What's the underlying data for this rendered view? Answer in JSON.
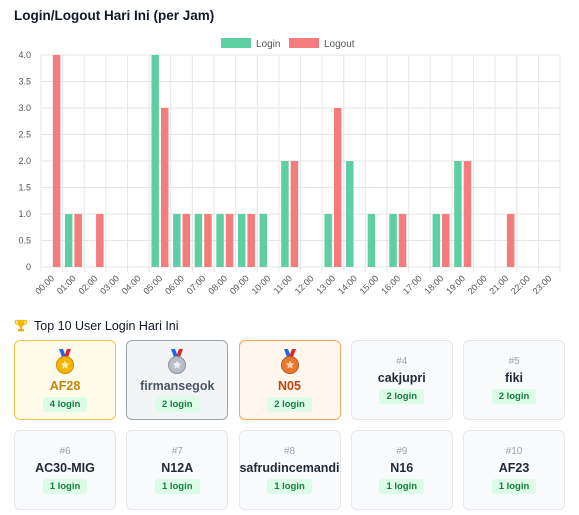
{
  "title": "Login/Logout Hari Ini (per Jam)",
  "chart_data": {
    "type": "bar",
    "categories": [
      "00:00",
      "01:00",
      "02:00",
      "03:00",
      "04:00",
      "05:00",
      "06:00",
      "07:00",
      "08:00",
      "09:00",
      "10:00",
      "11:00",
      "12:00",
      "13:00",
      "14:00",
      "15:00",
      "16:00",
      "17:00",
      "18:00",
      "19:00",
      "20:00",
      "21:00",
      "22:00",
      "23:00"
    ],
    "series": [
      {
        "name": "Login",
        "color": "#5ecfa3",
        "values": [
          0,
          1,
          0,
          0,
          0,
          4,
          1,
          1,
          1,
          1,
          1,
          2,
          0,
          1,
          2,
          1,
          1,
          0,
          1,
          2,
          0,
          0,
          0,
          0
        ]
      },
      {
        "name": "Logout",
        "color": "#f47c7c",
        "values": [
          4,
          1,
          1,
          0,
          0,
          3,
          1,
          1,
          1,
          1,
          0,
          2,
          0,
          3,
          0,
          0,
          1,
          0,
          1,
          2,
          0,
          1,
          0,
          0
        ]
      }
    ],
    "ylim": [
      0,
      4
    ],
    "yticks": [
      "0",
      "0.5",
      "1.0",
      "1.5",
      "2.0",
      "2.5",
      "3.0",
      "3.5",
      "4.0"
    ],
    "grid": true,
    "legend": "top-center"
  },
  "top_users": {
    "title": "Top 10 User Login Hari Ini",
    "medal_icons": [
      "gold-medal-icon",
      "silver-medal-icon",
      "bronze-medal-icon"
    ],
    "users": [
      {
        "rank": "#1",
        "name": "AF28",
        "count": "4 login"
      },
      {
        "rank": "#2",
        "name": "firmansegok",
        "count": "2 login"
      },
      {
        "rank": "#3",
        "name": "N05",
        "count": "2 login"
      },
      {
        "rank": "#4",
        "name": "cakjupri",
        "count": "2 login"
      },
      {
        "rank": "#5",
        "name": "fiki",
        "count": "2 login"
      },
      {
        "rank": "#6",
        "name": "AC30-MIG",
        "count": "1 login"
      },
      {
        "rank": "#7",
        "name": "N12A",
        "count": "1 login"
      },
      {
        "rank": "#8",
        "name": "safrudincemandi",
        "count": "1 login"
      },
      {
        "rank": "#9",
        "name": "N16",
        "count": "1 login"
      },
      {
        "rank": "#10",
        "name": "AF23",
        "count": "1 login"
      }
    ]
  }
}
